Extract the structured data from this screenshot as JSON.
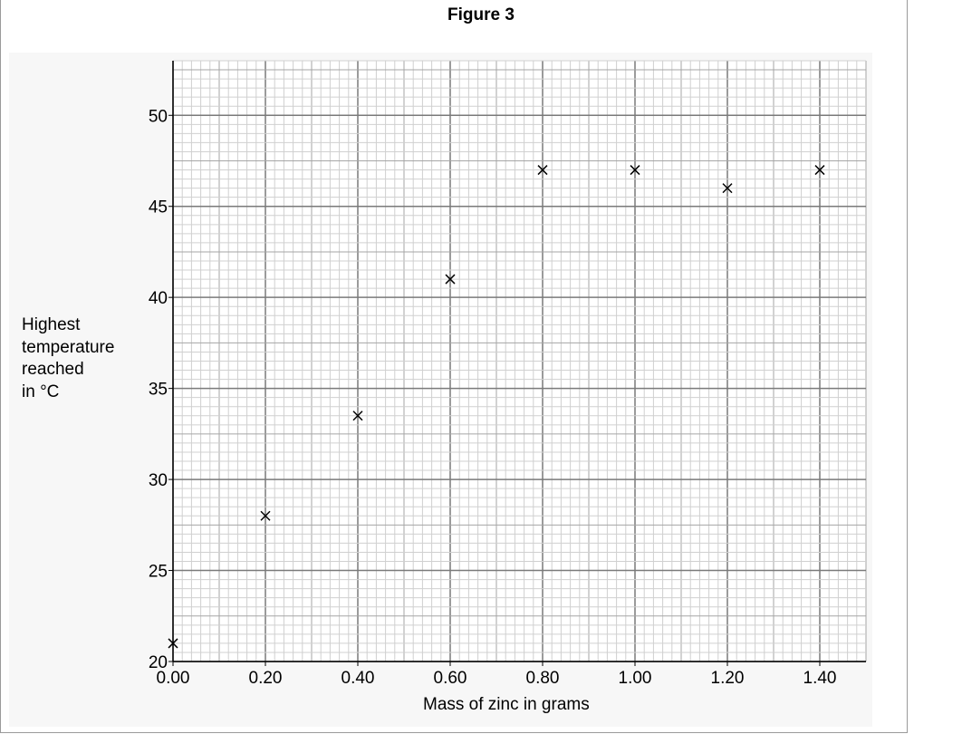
{
  "page": {
    "figure_title": "Figure 3"
  },
  "chart_data": {
    "type": "scatter",
    "title": "Figure 3",
    "xlabel": "Mass of zinc in grams",
    "ylabel": "Highest\ntemperature\nreached\nin °C",
    "xlim": [
      0,
      1.5
    ],
    "ylim": [
      20,
      53
    ],
    "x_ticks": [
      "0.00",
      "0.20",
      "0.40",
      "0.60",
      "0.80",
      "1.00",
      "1.20",
      "1.40"
    ],
    "y_ticks": [
      "20",
      "25",
      "30",
      "35",
      "40",
      "45",
      "50"
    ],
    "grid": true,
    "marker": "x",
    "points": [
      {
        "x": 0.0,
        "y": 21
      },
      {
        "x": 0.2,
        "y": 28
      },
      {
        "x": 0.4,
        "y": 33.5
      },
      {
        "x": 0.6,
        "y": 41
      },
      {
        "x": 0.8,
        "y": 47
      },
      {
        "x": 1.0,
        "y": 47
      },
      {
        "x": 1.2,
        "y": 46
      },
      {
        "x": 1.4,
        "y": 47
      }
    ]
  }
}
